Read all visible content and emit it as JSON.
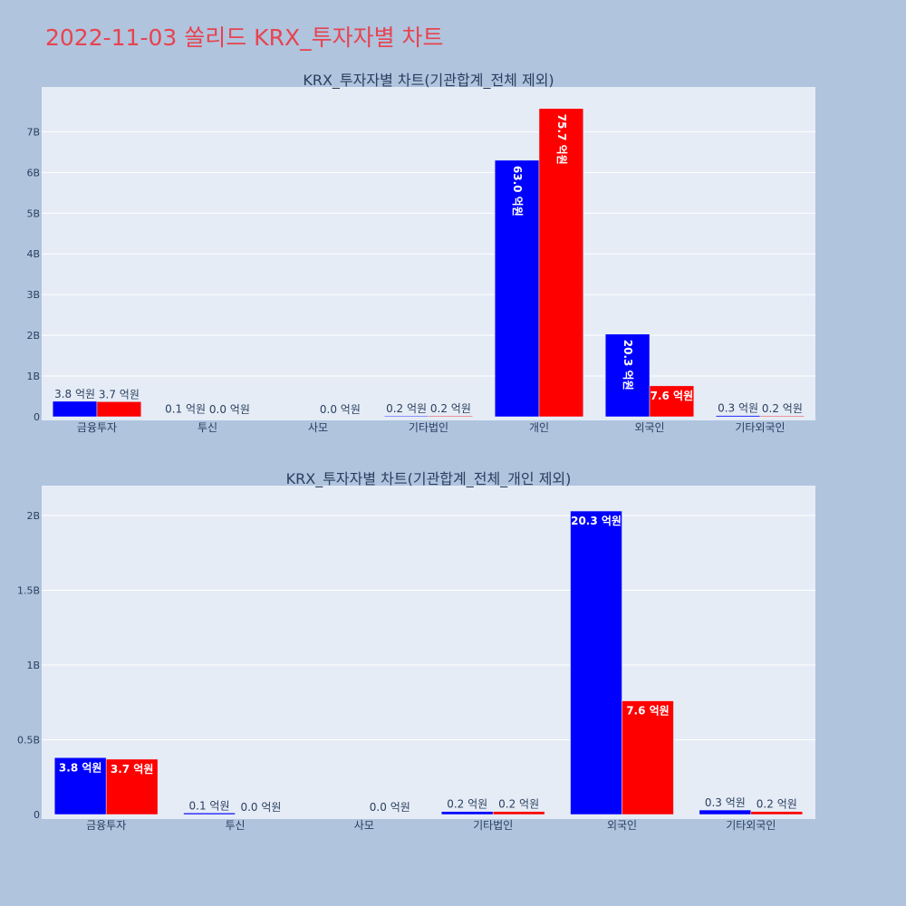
{
  "page": {
    "title": "2022-11-03 쏠리드 KRX_투자자별 차트"
  },
  "colors": {
    "series_a": "#0000ff",
    "series_b": "#ff0000",
    "plot_bg": "#e5ecf6",
    "page_bg": "#b0c4de"
  },
  "chart_data": [
    {
      "type": "bar",
      "title": "KRX_투자자별 차트(기관합계_전체 제외)",
      "categories": [
        "금융투자",
        "투신",
        "사모",
        "기타법인",
        "개인",
        "외국인",
        "기타외국인"
      ],
      "series": [
        {
          "values": [
            0.38,
            0.01,
            0.0,
            0.02,
            6.3,
            2.03,
            0.03
          ],
          "labels": [
            "3.8 억원",
            "0.1 억원",
            "",
            "0.2 억원",
            "63.0 억원",
            "20.3 억원",
            "0.3 억원"
          ]
        },
        {
          "values": [
            0.37,
            0.0,
            0.0,
            0.02,
            7.57,
            0.76,
            0.02
          ],
          "labels": [
            "3.7 억원",
            "0.0 억원",
            "0.0 억원",
            "0.2 억원",
            "75.7 억원",
            "7.6 억원",
            "0.2 억원"
          ]
        }
      ],
      "ylim": [
        0,
        8.1
      ],
      "yticks": [
        0,
        1,
        2,
        3,
        4,
        5,
        6,
        7
      ],
      "ytick_labels": [
        "0",
        "1B",
        "2B",
        "3B",
        "4B",
        "5B",
        "6B",
        "7B"
      ],
      "grid": true
    },
    {
      "type": "bar",
      "title": "KRX_투자자별 차트(기관합계_전체_개인 제외)",
      "categories": [
        "금융투자",
        "투신",
        "사모",
        "기타법인",
        "외국인",
        "기타외국인"
      ],
      "series": [
        {
          "values": [
            0.38,
            0.01,
            0.0,
            0.02,
            2.03,
            0.03
          ],
          "labels": [
            "3.8 억원",
            "0.1 억원",
            "",
            "0.2 억원",
            "20.3 억원",
            "0.3 억원"
          ]
        },
        {
          "values": [
            0.37,
            0.0,
            0.0,
            0.02,
            0.76,
            0.02
          ],
          "labels": [
            "3.7 억원",
            "0.0 억원",
            "0.0 억원",
            "0.2 억원",
            "7.6 억원",
            "0.2 억원"
          ]
        }
      ],
      "ylim": [
        0,
        2.2
      ],
      "yticks": [
        0,
        0.5,
        1,
        1.5,
        2
      ],
      "ytick_labels": [
        "0",
        "0.5B",
        "1B",
        "1.5B",
        "2B"
      ],
      "grid": true
    }
  ]
}
